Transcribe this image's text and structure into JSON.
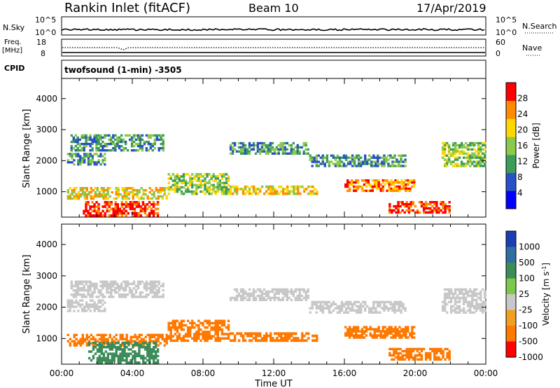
{
  "header": {
    "title": "Rankin Inlet (fitACF)",
    "beam": "Beam 10",
    "date": "17/Apr/2019"
  },
  "nsky_panel": {
    "left_label": "N.Sky",
    "left_top_tick": "10^5",
    "left_bottom_tick": "10^0",
    "right_label": "N.Search",
    "right_top_tick": "10^5",
    "right_bottom_tick": "10^0"
  },
  "freq_panel": {
    "left_label_1": "Freq.",
    "left_label_2": "[MHz]",
    "left_top_tick": "18",
    "left_bottom_tick": "8",
    "right_label": "Nave",
    "right_top_tick": "60",
    "right_bottom_tick": "0",
    "cpid_label": "CPID",
    "cpid_text": "twofsound (1-min) -3505"
  },
  "chart_data": [
    {
      "type": "heatmap",
      "name": "Power",
      "ylabel": "Slant Range [km]",
      "ylim": [
        180,
        4650
      ],
      "yticks": [
        1000,
        2000,
        3000,
        4000
      ],
      "xticks": [
        "00:00",
        "04:00",
        "08:00",
        "12:00",
        "16:00",
        "20:00",
        "00:00"
      ],
      "xrange_hours": [
        0,
        24
      ],
      "colorbar": {
        "label": "Power [dB]",
        "ticks": [
          "4",
          "8",
          "12",
          "16",
          "20",
          "24",
          "28"
        ],
        "colors": [
          "#0000ff",
          "#2850c8",
          "#3c9c5a",
          "#8cc84b",
          "#ffd700",
          "#ff8c00",
          "#ff0000"
        ]
      },
      "echo_regions": [
        {
          "t": [
            0.5,
            5.8
          ],
          "r": [
            2300,
            2850
          ],
          "level": 2
        },
        {
          "t": [
            0.3,
            2.5
          ],
          "r": [
            1850,
            2250
          ],
          "level": 2
        },
        {
          "t": [
            0.3,
            6.0
          ],
          "r": [
            750,
            1150
          ],
          "level": 4
        },
        {
          "t": [
            1.2,
            5.5
          ],
          "r": [
            200,
            700
          ],
          "level": 6
        },
        {
          "t": [
            6.0,
            9.5
          ],
          "r": [
            900,
            1600
          ],
          "level": 3
        },
        {
          "t": [
            9.5,
            14.5
          ],
          "r": [
            900,
            1200
          ],
          "level": 4
        },
        {
          "t": [
            9.5,
            14.0
          ],
          "r": [
            2200,
            2600
          ],
          "level": 2
        },
        {
          "t": [
            14.0,
            19.5
          ],
          "r": [
            1800,
            2200
          ],
          "level": 2
        },
        {
          "t": [
            16.0,
            20.0
          ],
          "r": [
            1000,
            1400
          ],
          "level": 5
        },
        {
          "t": [
            18.5,
            22.0
          ],
          "r": [
            300,
            700
          ],
          "level": 6
        },
        {
          "t": [
            21.5,
            24.0
          ],
          "r": [
            1800,
            2600
          ],
          "level": 3
        }
      ]
    },
    {
      "type": "heatmap",
      "name": "Velocity",
      "ylabel": "Slant Range [km]",
      "xlabel": "Time UT",
      "ylim": [
        180,
        4650
      ],
      "yticks": [
        1000,
        2000,
        3000,
        4000
      ],
      "xticks": [
        "00:00",
        "04:00",
        "08:00",
        "12:00",
        "16:00",
        "20:00",
        "00:00"
      ],
      "xrange_hours": [
        0,
        24
      ],
      "colorbar": {
        "label": "Velocity [m s^-1]",
        "ticks": [
          "1000",
          "500",
          "100",
          "25",
          "-25",
          "-100",
          "-500",
          "-1000"
        ],
        "colors": [
          "#1a3fb4",
          "#2f6ea0",
          "#3c8c5a",
          "#7cc84b",
          "#c8c8c8",
          "#f0a020",
          "#ff7800",
          "#ff0000"
        ]
      },
      "echo_regions": [
        {
          "t": [
            0.5,
            5.8
          ],
          "r": [
            2300,
            2850
          ],
          "color": "#c8c8c8"
        },
        {
          "t": [
            0.3,
            2.5
          ],
          "r": [
            1850,
            2250
          ],
          "color": "#c8c8c8"
        },
        {
          "t": [
            0.3,
            6.0
          ],
          "r": [
            750,
            1150
          ],
          "color": "#ff7800"
        },
        {
          "t": [
            1.5,
            5.5
          ],
          "r": [
            200,
            900
          ],
          "color": "#3c8c5a"
        },
        {
          "t": [
            6.0,
            9.5
          ],
          "r": [
            900,
            1600
          ],
          "color": "#ff7800"
        },
        {
          "t": [
            9.5,
            14.5
          ],
          "r": [
            900,
            1200
          ],
          "color": "#ff7800"
        },
        {
          "t": [
            9.5,
            14.0
          ],
          "r": [
            2200,
            2600
          ],
          "color": "#c8c8c8"
        },
        {
          "t": [
            14.0,
            19.5
          ],
          "r": [
            1800,
            2200
          ],
          "color": "#c8c8c8"
        },
        {
          "t": [
            16.0,
            20.0
          ],
          "r": [
            1000,
            1400
          ],
          "color": "#ff7800"
        },
        {
          "t": [
            18.5,
            22.0
          ],
          "r": [
            300,
            700
          ],
          "color": "#ff7800"
        },
        {
          "t": [
            21.5,
            24.0
          ],
          "r": [
            1800,
            2600
          ],
          "color": "#c8c8c8"
        }
      ]
    }
  ]
}
